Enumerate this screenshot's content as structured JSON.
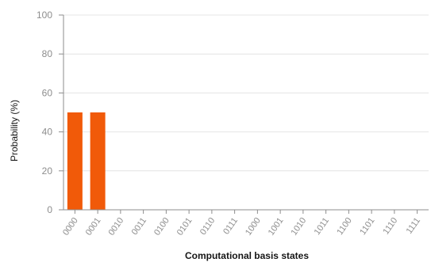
{
  "chart_data": {
    "type": "bar",
    "xlabel": "Computational basis states",
    "ylabel": "Probability (%)",
    "ylim": [
      0,
      100
    ],
    "yticks": [
      0,
      20,
      40,
      60,
      80,
      100
    ],
    "grid": true,
    "bar_color": "#f15a09",
    "categories": [
      "0000",
      "0001",
      "0010",
      "0011",
      "0100",
      "0101",
      "0110",
      "0111",
      "1000",
      "1001",
      "1010",
      "1011",
      "1100",
      "1101",
      "1110",
      "1111"
    ],
    "values": [
      50,
      50,
      0,
      0,
      0,
      0,
      0,
      0,
      0,
      0,
      0,
      0,
      0,
      0,
      0,
      0
    ]
  }
}
